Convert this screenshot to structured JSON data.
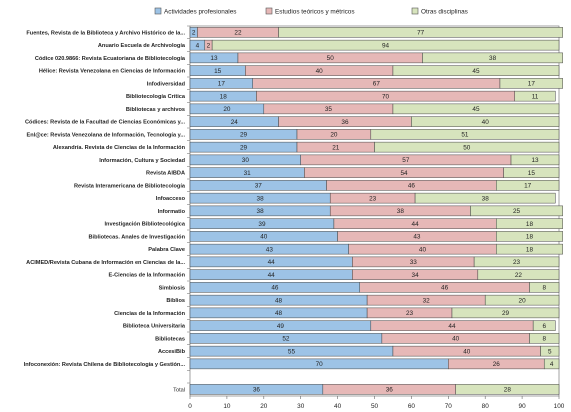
{
  "chart_data": {
    "type": "bar",
    "orientation": "horizontal",
    "stacked": true,
    "xlim": [
      0,
      100
    ],
    "xticks": [
      "0",
      "10",
      "20",
      "30",
      "40",
      "50",
      "60",
      "70",
      "80",
      "90",
      "100"
    ],
    "legend_position": "top",
    "grid": false,
    "series": [
      {
        "name": "Actividades profesionales",
        "color": "#9dc3e6"
      },
      {
        "name": "Estudios teóricos y métricos",
        "color": "#e6b8b7"
      },
      {
        "name": "Otras disciplinas",
        "color": "#d7e4bd"
      }
    ],
    "categories": [
      "Fuentes, Revista de la Biblioteca y Archivo Histórico de la...",
      "Anuario Escuela de Archivología",
      "Códice 020.9866: Revista Ecuatoriana de Bibliotecología",
      "Hélice: Revista Venezolana en Ciencias de Información",
      "Infodiversidad",
      "Bibliotecología Crítica",
      "Bibliotecas y archivos",
      "Códices: Revista de la Facultad de Ciencias Económicas y...",
      "Enl@ce: Revista Venezolana de Información, Tecnología y...",
      "Alexandría. Revista de Ciencias de la Información",
      "Información, Cultura y Sociedad",
      "Revista AIBDA",
      "Revista Interamericana de Bibliotecología",
      "Infoacceso",
      "Informatio",
      "Investigación Bibliotecológica",
      "Bibliotecas. Anales de Investigación",
      "Palabra Clave",
      "ACIMED/Revista Cubana de Información en Ciencias de la...",
      "E-Ciencias de la Información",
      "Simbiosis",
      "Biblios",
      "Ciencias de la Información",
      "Biblioteca Universitaria",
      "Bibliotecas",
      "AccesiBib",
      "Infoconexión: Revista Chilena de Bibliotecología y Gestión...",
      "",
      "Total"
    ],
    "values": [
      [
        2,
        22,
        77
      ],
      [
        4,
        2,
        94
      ],
      [
        13,
        50,
        38
      ],
      [
        15,
        40,
        45
      ],
      [
        17,
        67,
        17
      ],
      [
        18,
        70,
        11
      ],
      [
        20,
        35,
        45
      ],
      [
        24,
        36,
        40
      ],
      [
        29,
        20,
        51
      ],
      [
        29,
        21,
        50
      ],
      [
        30,
        57,
        13
      ],
      [
        31,
        54,
        15
      ],
      [
        37,
        46,
        17
      ],
      [
        38,
        23,
        38
      ],
      [
        38,
        38,
        25
      ],
      [
        39,
        44,
        18
      ],
      [
        40,
        43,
        18
      ],
      [
        43,
        40,
        18
      ],
      [
        44,
        33,
        23
      ],
      [
        44,
        34,
        22
      ],
      [
        46,
        46,
        8
      ],
      [
        48,
        32,
        20
      ],
      [
        48,
        23,
        29
      ],
      [
        49,
        44,
        6
      ],
      [
        52,
        40,
        8
      ],
      [
        55,
        40,
        5
      ],
      [
        70,
        26,
        4
      ],
      null,
      [
        36,
        36,
        28
      ]
    ]
  }
}
